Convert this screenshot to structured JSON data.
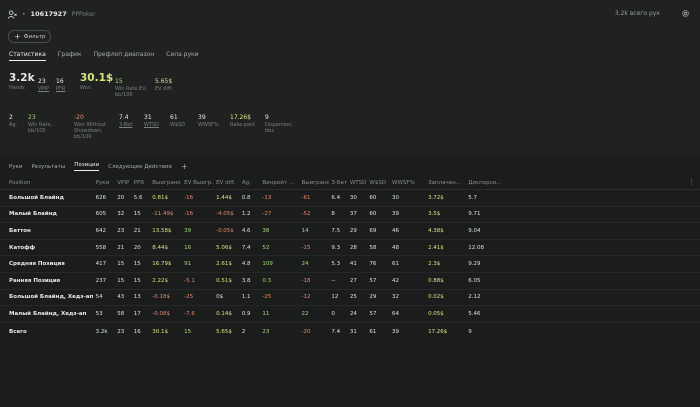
{
  "header": {
    "player_id": "10617927",
    "room": "PPPoker",
    "total_hands": "3.2k всего рук",
    "filter_label": "Фильтр"
  },
  "main_tabs": [
    "Статистика",
    "График",
    "Префлоп диапазон",
    "Сила руки"
  ],
  "stats_row1": [
    {
      "value": "3.2k",
      "label": "Hands",
      "style": "big"
    },
    {
      "value": "23",
      "label": "VPIP",
      "style": "small",
      "underline": true
    },
    {
      "value": "16",
      "label": "PFR",
      "style": "small",
      "underline": true
    },
    {
      "value": "30.1$",
      "label": "Won",
      "style": "big",
      "color": "yellow"
    },
    {
      "value": "15",
      "label": "Win Rate EV, bb/100",
      "style": "small",
      "color": "green"
    },
    {
      "value": "5.65$",
      "label": "EV diff.",
      "style": "small",
      "color": "yellow"
    }
  ],
  "stats_row2": [
    {
      "value": "2",
      "label": "Ag."
    },
    {
      "value": "23",
      "label": "Win Rate, bb/100",
      "color": "green"
    },
    {
      "value": "-20",
      "label": "Won Without Showdown, bb/100",
      "color": "red"
    },
    {
      "value": "7.4",
      "label": "3-Bet",
      "underline": true
    },
    {
      "value": "31",
      "label": "WTSD",
      "underline": true
    },
    {
      "value": "61",
      "label": "W$SD"
    },
    {
      "value": "39",
      "label": "WWSF%"
    },
    {
      "value": "17.26$",
      "label": "Rake paid",
      "color": "yellow"
    },
    {
      "value": "9",
      "label": "Dispersion, bbs"
    }
  ],
  "sub_tabs": [
    "Руки",
    "Результаты",
    "Позиции",
    "Следующее Действие"
  ],
  "table": {
    "columns": [
      "Position",
      "Руки",
      "VPIP",
      "PFR",
      "Выиграно",
      "EV Выигр...",
      "EV diff.",
      "Ag.",
      "Винрейт ...",
      "Выиграно ...",
      "3-Бет",
      "WTSD",
      "W$SD",
      "WWSF%",
      "Заплачен...",
      "Дисперси..."
    ],
    "rows": [
      [
        "Большой Блайнд",
        "626",
        "20",
        "5.6",
        "0.81$",
        "-16",
        "1.44$",
        "0.8",
        "-13",
        "-61",
        "6.4",
        "30",
        "60",
        "30",
        "3.72$",
        "5.7"
      ],
      [
        "Малый Блайнд",
        "605",
        "32",
        "15",
        "-11.49$",
        "-16",
        "-4.05$",
        "1.2",
        "-27",
        "-52",
        "8",
        "37",
        "60",
        "39",
        "3.5$",
        "9.71"
      ],
      [
        "Баттон",
        "642",
        "23",
        "21",
        "13.58$",
        "39",
        "-0.05$",
        "4.6",
        "38",
        "14",
        "7.5",
        "29",
        "69",
        "46",
        "4.38$",
        "9.04"
      ],
      [
        "Катофф",
        "558",
        "21",
        "20",
        "8.44$",
        "16",
        "5.06$",
        "7.4",
        "52",
        "-15",
        "9.3",
        "28",
        "58",
        "48",
        "2.41$",
        "12.08"
      ],
      [
        "Средняя Позиция",
        "417",
        "15",
        "15",
        "16.79$",
        "91",
        "2.61$",
        "4.8",
        "109",
        "24",
        "5.3",
        "41",
        "76",
        "61",
        "2.3$",
        "9.29"
      ],
      [
        "Ранняя Позиция",
        "237",
        "15",
        "15",
        "2.22$",
        "-5.1",
        "0.51$",
        "3.8",
        "0.3",
        "-18",
        "--",
        "27",
        "57",
        "42",
        "0.88$",
        "6.05"
      ],
      [
        "Большой Блайнд, Хедз-ап",
        "54",
        "43",
        "13",
        "-0.18$",
        "-25",
        "0$",
        "1.1",
        "-25",
        "-12",
        "12",
        "25",
        "29",
        "32",
        "0.02$",
        "2.12"
      ],
      [
        "Малый Блайнд, Хедз-ап",
        "53",
        "58",
        "17",
        "-0.08$",
        "-7.6",
        "0.14$",
        "0.9",
        "11",
        "22",
        "0",
        "24",
        "57",
        "64",
        "0.05$",
        "5.46"
      ]
    ],
    "total": [
      "Всего",
      "3.2k",
      "23",
      "16",
      "30.1$",
      "15",
      "5.65$",
      "2",
      "23",
      "-20",
      "7.4",
      "31",
      "61",
      "39",
      "17.26$",
      "9"
    ]
  },
  "colors": {
    "green": "#a9d87a",
    "red": "#e48a6c",
    "yellow": "#d4e685"
  }
}
